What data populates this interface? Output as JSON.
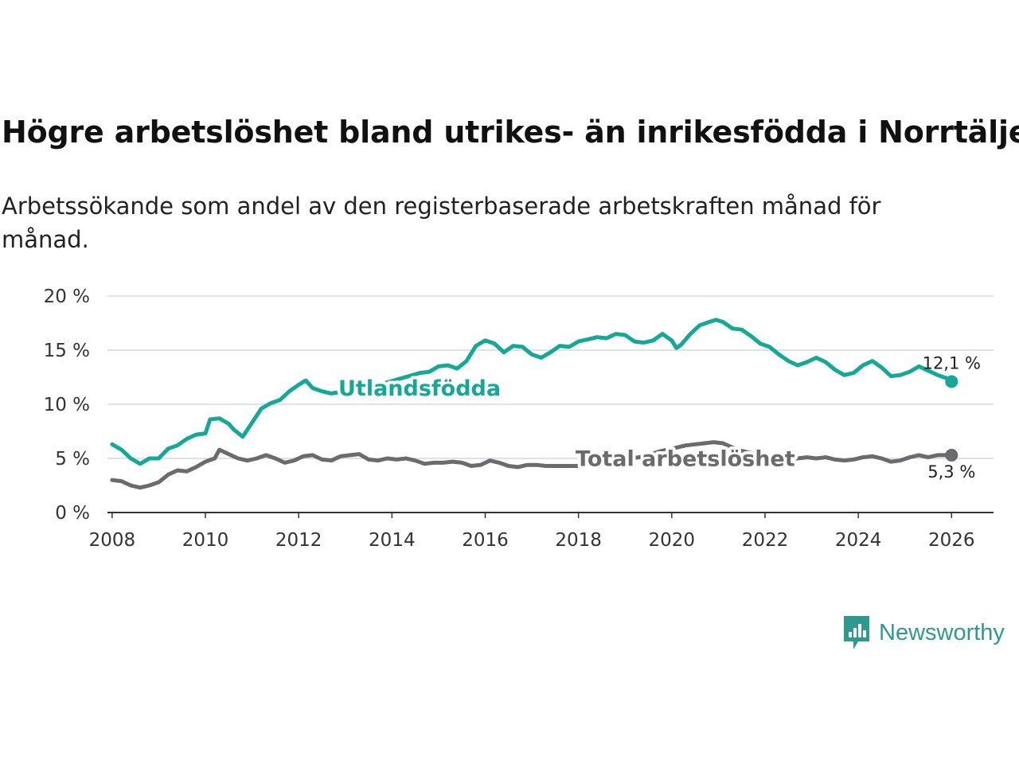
{
  "title": "Högre arbetslöshet bland utrikes- än inrikesfödda i Norrtälje",
  "subtitle": "Arbetssökande som andel av den registerbaserade arbetskraften månad för månad.",
  "brand": "Newsworthy",
  "colors": {
    "foreign_born": "#14a898",
    "total": "#6b6b6e",
    "brand": "#2e9a8f",
    "grid": "#d9d9d9",
    "axis": "#333333"
  },
  "chart_data": {
    "type": "line",
    "title": "Högre arbetslöshet bland utrikes- än inrikesfödda i Norrtälje",
    "xlabel": "",
    "ylabel": "",
    "xlim": [
      2007.9,
      2026.9
    ],
    "ylim": [
      0,
      20
    ],
    "x_ticks": [
      2008,
      2010,
      2012,
      2014,
      2016,
      2018,
      2020,
      2022,
      2024,
      2026
    ],
    "y_ticks": [
      0,
      5,
      10,
      15,
      20
    ],
    "y_tick_labels": [
      "0 %",
      "5 %",
      "10 %",
      "15 %",
      "20 %"
    ],
    "grid": "horizontal",
    "series": [
      {
        "name": "Utlandsfödda",
        "end_label": "12,1 %",
        "points": [
          [
            2008.0,
            6.3
          ],
          [
            2008.2,
            5.8
          ],
          [
            2008.4,
            5.0
          ],
          [
            2008.6,
            4.5
          ],
          [
            2008.8,
            5.0
          ],
          [
            2009.0,
            5.0
          ],
          [
            2009.2,
            5.9
          ],
          [
            2009.4,
            6.2
          ],
          [
            2009.6,
            6.8
          ],
          [
            2009.8,
            7.2
          ],
          [
            2010.0,
            7.3
          ],
          [
            2010.1,
            8.6
          ],
          [
            2010.3,
            8.7
          ],
          [
            2010.5,
            8.2
          ],
          [
            2010.6,
            7.7
          ],
          [
            2010.8,
            7.0
          ],
          [
            2011.0,
            8.3
          ],
          [
            2011.2,
            9.6
          ],
          [
            2011.4,
            10.1
          ],
          [
            2011.6,
            10.4
          ],
          [
            2011.8,
            11.2
          ],
          [
            2012.0,
            11.8
          ],
          [
            2012.15,
            12.2
          ],
          [
            2012.3,
            11.5
          ],
          [
            2012.5,
            11.2
          ],
          [
            2012.7,
            11.0
          ],
          [
            2013.0,
            11.2
          ],
          [
            2013.4,
            11.6
          ],
          [
            2013.8,
            11.9
          ],
          [
            2014.2,
            12.4
          ],
          [
            2014.6,
            12.9
          ],
          [
            2014.8,
            13.0
          ],
          [
            2015.0,
            13.5
          ],
          [
            2015.2,
            13.6
          ],
          [
            2015.4,
            13.3
          ],
          [
            2015.6,
            14.0
          ],
          [
            2015.8,
            15.4
          ],
          [
            2016.0,
            15.9
          ],
          [
            2016.2,
            15.6
          ],
          [
            2016.4,
            14.8
          ],
          [
            2016.6,
            15.4
          ],
          [
            2016.8,
            15.3
          ],
          [
            2017.0,
            14.6
          ],
          [
            2017.2,
            14.3
          ],
          [
            2017.4,
            14.8
          ],
          [
            2017.6,
            15.4
          ],
          [
            2017.8,
            15.3
          ],
          [
            2018.0,
            15.8
          ],
          [
            2018.2,
            16.0
          ],
          [
            2018.4,
            16.2
          ],
          [
            2018.6,
            16.1
          ],
          [
            2018.8,
            16.5
          ],
          [
            2019.0,
            16.4
          ],
          [
            2019.2,
            15.8
          ],
          [
            2019.4,
            15.7
          ],
          [
            2019.6,
            15.9
          ],
          [
            2019.8,
            16.5
          ],
          [
            2020.0,
            15.9
          ],
          [
            2020.1,
            15.2
          ],
          [
            2020.2,
            15.5
          ],
          [
            2020.4,
            16.5
          ],
          [
            2020.6,
            17.3
          ],
          [
            2020.8,
            17.6
          ],
          [
            2020.95,
            17.8
          ],
          [
            2021.1,
            17.6
          ],
          [
            2021.3,
            17.0
          ],
          [
            2021.5,
            16.9
          ],
          [
            2021.7,
            16.3
          ],
          [
            2021.9,
            15.6
          ],
          [
            2022.1,
            15.3
          ],
          [
            2022.3,
            14.6
          ],
          [
            2022.5,
            14.0
          ],
          [
            2022.7,
            13.6
          ],
          [
            2022.9,
            13.9
          ],
          [
            2023.1,
            14.3
          ],
          [
            2023.3,
            13.9
          ],
          [
            2023.5,
            13.2
          ],
          [
            2023.7,
            12.7
          ],
          [
            2023.9,
            12.9
          ],
          [
            2024.1,
            13.6
          ],
          [
            2024.3,
            14.0
          ],
          [
            2024.5,
            13.4
          ],
          [
            2024.7,
            12.6
          ],
          [
            2024.9,
            12.7
          ],
          [
            2025.1,
            13.0
          ],
          [
            2025.3,
            13.5
          ],
          [
            2025.5,
            13.1
          ],
          [
            2025.7,
            12.7
          ],
          [
            2025.9,
            12.4
          ],
          [
            2026.0,
            12.1
          ]
        ]
      },
      {
        "name": "Total arbetslöshet",
        "end_label": "5,3 %",
        "points": [
          [
            2008.0,
            3.0
          ],
          [
            2008.2,
            2.9
          ],
          [
            2008.4,
            2.5
          ],
          [
            2008.6,
            2.3
          ],
          [
            2008.8,
            2.5
          ],
          [
            2009.0,
            2.8
          ],
          [
            2009.2,
            3.5
          ],
          [
            2009.4,
            3.9
          ],
          [
            2009.6,
            3.8
          ],
          [
            2009.8,
            4.2
          ],
          [
            2010.0,
            4.7
          ],
          [
            2010.2,
            5.0
          ],
          [
            2010.3,
            5.8
          ],
          [
            2010.5,
            5.4
          ],
          [
            2010.7,
            5.0
          ],
          [
            2010.9,
            4.8
          ],
          [
            2011.1,
            5.0
          ],
          [
            2011.3,
            5.3
          ],
          [
            2011.5,
            5.0
          ],
          [
            2011.7,
            4.6
          ],
          [
            2011.9,
            4.8
          ],
          [
            2012.1,
            5.2
          ],
          [
            2012.3,
            5.3
          ],
          [
            2012.5,
            4.9
          ],
          [
            2012.7,
            4.8
          ],
          [
            2012.9,
            5.2
          ],
          [
            2013.1,
            5.3
          ],
          [
            2013.3,
            5.4
          ],
          [
            2013.5,
            4.9
          ],
          [
            2013.7,
            4.8
          ],
          [
            2013.9,
            5.0
          ],
          [
            2014.1,
            4.9
          ],
          [
            2014.3,
            5.0
          ],
          [
            2014.5,
            4.8
          ],
          [
            2014.7,
            4.5
          ],
          [
            2014.9,
            4.6
          ],
          [
            2015.1,
            4.6
          ],
          [
            2015.3,
            4.7
          ],
          [
            2015.5,
            4.6
          ],
          [
            2015.7,
            4.3
          ],
          [
            2015.9,
            4.4
          ],
          [
            2016.1,
            4.8
          ],
          [
            2016.3,
            4.6
          ],
          [
            2016.5,
            4.3
          ],
          [
            2016.7,
            4.2
          ],
          [
            2016.9,
            4.4
          ],
          [
            2017.1,
            4.4
          ],
          [
            2017.3,
            4.3
          ],
          [
            2017.5,
            4.3
          ],
          [
            2017.7,
            4.3
          ],
          [
            2017.9,
            4.3
          ],
          [
            2018.1,
            4.3
          ],
          [
            2018.3,
            4.6
          ],
          [
            2018.5,
            4.7
          ],
          [
            2018.7,
            4.6
          ],
          [
            2018.9,
            4.8
          ],
          [
            2019.1,
            5.0
          ],
          [
            2019.3,
            5.1
          ],
          [
            2019.5,
            5.3
          ],
          [
            2019.7,
            5.6
          ],
          [
            2019.9,
            5.8
          ],
          [
            2020.1,
            6.0
          ],
          [
            2020.3,
            6.2
          ],
          [
            2020.5,
            6.3
          ],
          [
            2020.7,
            6.4
          ],
          [
            2020.9,
            6.5
          ],
          [
            2021.1,
            6.4
          ],
          [
            2021.3,
            6.0
          ],
          [
            2021.5,
            5.7
          ],
          [
            2021.7,
            5.5
          ],
          [
            2021.9,
            5.3
          ],
          [
            2022.1,
            5.2
          ],
          [
            2022.3,
            5.1
          ],
          [
            2022.5,
            5.0
          ],
          [
            2022.7,
            5.0
          ],
          [
            2022.9,
            5.1
          ],
          [
            2023.1,
            5.0
          ],
          [
            2023.3,
            5.1
          ],
          [
            2023.5,
            4.9
          ],
          [
            2023.7,
            4.8
          ],
          [
            2023.9,
            4.9
          ],
          [
            2024.1,
            5.1
          ],
          [
            2024.3,
            5.2
          ],
          [
            2024.5,
            5.0
          ],
          [
            2024.7,
            4.7
          ],
          [
            2024.9,
            4.8
          ],
          [
            2025.1,
            5.1
          ],
          [
            2025.3,
            5.3
          ],
          [
            2025.5,
            5.1
          ],
          [
            2025.7,
            5.3
          ],
          [
            2025.9,
            5.3
          ],
          [
            2026.0,
            5.3
          ]
        ]
      }
    ]
  }
}
